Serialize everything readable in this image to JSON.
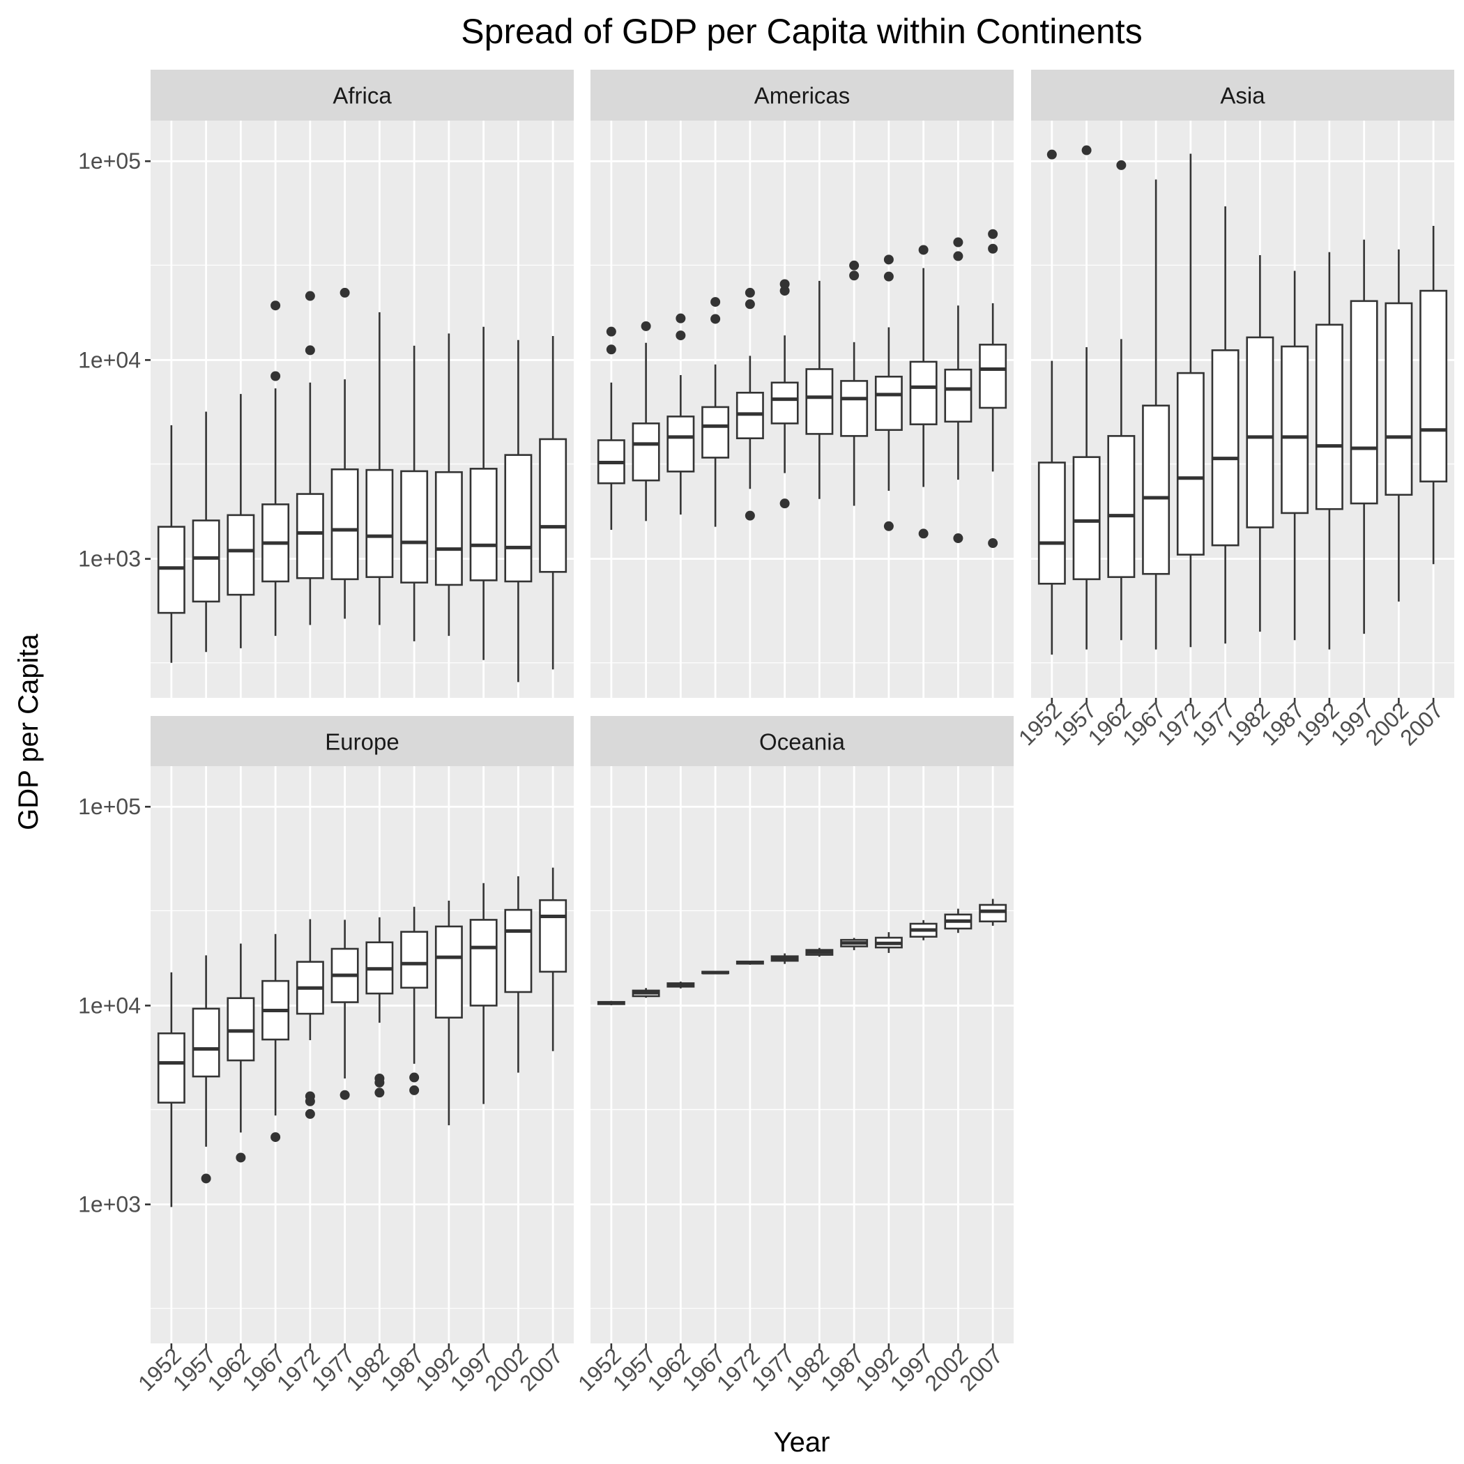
{
  "chart_data": {
    "type": "boxplot",
    "title": "Spread of GDP per Capita within Continents",
    "xlabel": "Year",
    "ylabel": "GDP per Capita",
    "y_scale": "log10",
    "ylim": [
      200,
      160000
    ],
    "y_ticks": [
      1000,
      10000,
      100000
    ],
    "y_tick_labels": [
      "1e+03",
      "1e+04",
      "1e+05"
    ],
    "categories": [
      "1952",
      "1957",
      "1962",
      "1967",
      "1972",
      "1977",
      "1982",
      "1987",
      "1992",
      "1997",
      "2002",
      "2007"
    ],
    "grid": true,
    "colors": {
      "panel_bg": "#ebebeb",
      "strip_bg": "#d9d9d9",
      "grid": "#ffffff",
      "box_line": "#333333",
      "box_fill": "#ffffff"
    },
    "panels": [
      {
        "name": "Africa",
        "boxes": [
          {
            "year": "1952",
            "min": 300,
            "q1": 535,
            "median": 900,
            "q3": 1450,
            "max": 4700,
            "outliers": []
          },
          {
            "year": "1957",
            "min": 340,
            "q1": 610,
            "median": 1010,
            "q3": 1560,
            "max": 5500,
            "outliers": []
          },
          {
            "year": "1962",
            "min": 355,
            "q1": 660,
            "median": 1100,
            "q3": 1660,
            "max": 6750,
            "outliers": []
          },
          {
            "year": "1967",
            "min": 410,
            "q1": 770,
            "median": 1200,
            "q3": 1880,
            "max": 7200,
            "outliers": [
              8300,
              18800
            ]
          },
          {
            "year": "1972",
            "min": 465,
            "q1": 800,
            "median": 1350,
            "q3": 2120,
            "max": 7700,
            "outliers": [
              11200,
              21000
            ]
          },
          {
            "year": "1977",
            "min": 500,
            "q1": 790,
            "median": 1400,
            "q3": 2820,
            "max": 8000,
            "outliers": [
              21800
            ]
          },
          {
            "year": "1982",
            "min": 465,
            "q1": 810,
            "median": 1300,
            "q3": 2800,
            "max": 17400,
            "outliers": []
          },
          {
            "year": "1987",
            "min": 385,
            "q1": 760,
            "median": 1210,
            "q3": 2760,
            "max": 11800,
            "outliers": []
          },
          {
            "year": "1992",
            "min": 410,
            "q1": 740,
            "median": 1120,
            "q3": 2730,
            "max": 13600,
            "outliers": []
          },
          {
            "year": "1997",
            "min": 310,
            "q1": 780,
            "median": 1170,
            "q3": 2840,
            "max": 14700,
            "outliers": []
          },
          {
            "year": "2002",
            "min": 240,
            "q1": 770,
            "median": 1140,
            "q3": 3330,
            "max": 12600,
            "outliers": []
          },
          {
            "year": "2007",
            "min": 278,
            "q1": 860,
            "median": 1450,
            "q3": 4000,
            "max": 13200,
            "outliers": []
          }
        ]
      },
      {
        "name": "Americas",
        "boxes": [
          {
            "year": "1952",
            "min": 1400,
            "q1": 2400,
            "median": 3050,
            "q3": 3950,
            "max": 7700,
            "outliers": [
              11300,
              13900
            ]
          },
          {
            "year": "1957",
            "min": 1550,
            "q1": 2480,
            "median": 3780,
            "q3": 4800,
            "max": 12200,
            "outliers": [
              14800
            ]
          },
          {
            "year": "1962",
            "min": 1670,
            "q1": 2750,
            "median": 4100,
            "q3": 5200,
            "max": 8400,
            "outliers": [
              13300,
              16200
            ]
          },
          {
            "year": "1967",
            "min": 1450,
            "q1": 3230,
            "median": 4650,
            "q3": 5800,
            "max": 9500,
            "outliers": [
              16100,
              19600
            ]
          },
          {
            "year": "1972",
            "min": 2250,
            "q1": 4040,
            "median": 5350,
            "q3": 6850,
            "max": 10500,
            "outliers": [
              1650,
              19100,
              21800
            ]
          },
          {
            "year": "1977",
            "min": 2700,
            "q1": 4800,
            "median": 6350,
            "q3": 7700,
            "max": 13300,
            "outliers": [
              1900,
              22300,
              24100
            ]
          },
          {
            "year": "1982",
            "min": 2000,
            "q1": 4250,
            "median": 6500,
            "q3": 9000,
            "max": 25000,
            "outliers": []
          },
          {
            "year": "1987",
            "min": 1850,
            "q1": 4150,
            "median": 6400,
            "q3": 7850,
            "max": 12300,
            "outliers": [
              26600,
              29900
            ]
          },
          {
            "year": "1992",
            "min": 2200,
            "q1": 4450,
            "median": 6700,
            "q3": 8250,
            "max": 14600,
            "outliers": [
              1460,
              26300,
              32000
            ]
          },
          {
            "year": "1997",
            "min": 2300,
            "q1": 4750,
            "median": 7300,
            "q3": 9800,
            "max": 29000,
            "outliers": [
              1340,
              35800
            ]
          },
          {
            "year": "2002",
            "min": 2500,
            "q1": 4900,
            "median": 7150,
            "q3": 8950,
            "max": 18800,
            "outliers": [
              1270,
              33300,
              39100
            ]
          },
          {
            "year": "2007",
            "min": 2750,
            "q1": 5750,
            "median": 9000,
            "q3": 11950,
            "max": 19300,
            "outliers": [
              1200,
              36300,
              43000
            ]
          }
        ]
      },
      {
        "name": "Asia",
        "boxes": [
          {
            "year": "1952",
            "min": 330,
            "q1": 750,
            "median": 1200,
            "q3": 3050,
            "max": 9900,
            "outliers": [
              108000
            ]
          },
          {
            "year": "1957",
            "min": 350,
            "q1": 790,
            "median": 1550,
            "q3": 3250,
            "max": 11600,
            "outliers": [
              113500
            ]
          },
          {
            "year": "1962",
            "min": 390,
            "q1": 810,
            "median": 1650,
            "q3": 4150,
            "max": 12750,
            "outliers": [
              95500
            ]
          },
          {
            "year": "1967",
            "min": 350,
            "q1": 840,
            "median": 2030,
            "q3": 5900,
            "max": 80900,
            "outliers": []
          },
          {
            "year": "1972",
            "min": 360,
            "q1": 1050,
            "median": 2550,
            "q3": 8600,
            "max": 109000,
            "outliers": []
          },
          {
            "year": "1977",
            "min": 375,
            "q1": 1170,
            "median": 3200,
            "q3": 11200,
            "max": 59300,
            "outliers": []
          },
          {
            "year": "1982",
            "min": 430,
            "q1": 1440,
            "median": 4100,
            "q3": 13000,
            "max": 33700,
            "outliers": []
          },
          {
            "year": "1987",
            "min": 390,
            "q1": 1700,
            "median": 4100,
            "q3": 11700,
            "max": 28100,
            "outliers": []
          },
          {
            "year": "1992",
            "min": 350,
            "q1": 1780,
            "median": 3700,
            "q3": 15050,
            "max": 34900,
            "outliers": []
          },
          {
            "year": "1997",
            "min": 420,
            "q1": 1900,
            "median": 3600,
            "q3": 19800,
            "max": 40300,
            "outliers": []
          },
          {
            "year": "2002",
            "min": 610,
            "q1": 2100,
            "median": 4100,
            "q3": 19300,
            "max": 36000,
            "outliers": []
          },
          {
            "year": "2007",
            "min": 940,
            "q1": 2450,
            "median": 4450,
            "q3": 22300,
            "max": 47300,
            "outliers": []
          }
        ]
      },
      {
        "name": "Europe",
        "boxes": [
          {
            "year": "1952",
            "min": 970,
            "q1": 3250,
            "median": 5150,
            "q3": 7250,
            "max": 14700,
            "outliers": []
          },
          {
            "year": "1957",
            "min": 1950,
            "q1": 4400,
            "median": 6050,
            "q3": 9650,
            "max": 17900,
            "outliers": [
              1350
            ]
          },
          {
            "year": "1962",
            "min": 2300,
            "q1": 5300,
            "median": 7450,
            "q3": 10900,
            "max": 20500,
            "outliers": [
              1720
            ]
          },
          {
            "year": "1967",
            "min": 2800,
            "q1": 6750,
            "median": 9450,
            "q3": 13300,
            "max": 22900,
            "outliers": [
              2180
            ]
          },
          {
            "year": "1972",
            "min": 6700,
            "q1": 9100,
            "median": 12250,
            "q3": 16600,
            "max": 27200,
            "outliers": [
              2850,
              3300,
              3500
            ]
          },
          {
            "year": "1977",
            "min": 4300,
            "q1": 10400,
            "median": 14200,
            "q3": 19300,
            "max": 27000,
            "outliers": [
              3550
            ]
          },
          {
            "year": "1982",
            "min": 8200,
            "q1": 11500,
            "median": 15300,
            "q3": 20800,
            "max": 27800,
            "outliers": [
              3650,
              4100,
              4300
            ]
          },
          {
            "year": "1987",
            "min": 5100,
            "q1": 12300,
            "median": 16250,
            "q3": 23500,
            "max": 31400,
            "outliers": [
              3750,
              4350
            ]
          },
          {
            "year": "1992",
            "min": 2500,
            "q1": 8700,
            "median": 17500,
            "q3": 25000,
            "max": 33700,
            "outliers": []
          },
          {
            "year": "1997",
            "min": 3200,
            "q1": 10000,
            "median": 19600,
            "q3": 27000,
            "max": 41300,
            "outliers": []
          },
          {
            "year": "2002",
            "min": 4600,
            "q1": 11700,
            "median": 23700,
            "q3": 30300,
            "max": 44700,
            "outliers": []
          },
          {
            "year": "2007",
            "min": 5900,
            "q1": 14800,
            "median": 28100,
            "q3": 33900,
            "max": 49400,
            "outliers": []
          }
        ]
      },
      {
        "name": "Oceania",
        "boxes": [
          {
            "year": "1952",
            "min": 10040,
            "q1": 10170,
            "median": 10300,
            "q3": 10430,
            "max": 10560,
            "outliers": []
          },
          {
            "year": "1957",
            "min": 10950,
            "q1": 11150,
            "median": 11600,
            "q3": 11900,
            "max": 12250,
            "outliers": []
          },
          {
            "year": "1962",
            "min": 12200,
            "q1": 12450,
            "median": 12700,
            "q3": 12950,
            "max": 13200,
            "outliers": []
          },
          {
            "year": "1967",
            "min": 14450,
            "q1": 14550,
            "median": 14650,
            "q3": 14800,
            "max": 14900,
            "outliers": []
          },
          {
            "year": "1972",
            "min": 16050,
            "q1": 16250,
            "median": 16450,
            "q3": 16650,
            "max": 16800,
            "outliers": []
          },
          {
            "year": "1977",
            "min": 16200,
            "q1": 16800,
            "median": 17300,
            "q3": 17700,
            "max": 18300,
            "outliers": []
          },
          {
            "year": "1982",
            "min": 17600,
            "q1": 18000,
            "median": 18550,
            "q3": 19050,
            "max": 19500,
            "outliers": []
          },
          {
            "year": "1987",
            "min": 19000,
            "q1": 19850,
            "median": 20650,
            "q3": 21400,
            "max": 21900,
            "outliers": []
          },
          {
            "year": "1992",
            "min": 18400,
            "q1": 19600,
            "median": 20550,
            "q3": 21950,
            "max": 23400,
            "outliers": []
          },
          {
            "year": "1997",
            "min": 21300,
            "q1": 22200,
            "median": 24000,
            "q3": 25800,
            "max": 26900,
            "outliers": []
          },
          {
            "year": "2002",
            "min": 23200,
            "q1": 24400,
            "median": 26600,
            "q3": 28700,
            "max": 30700,
            "outliers": []
          },
          {
            "year": "2007",
            "min": 25200,
            "q1": 26500,
            "median": 29800,
            "q3": 32100,
            "max": 34400,
            "outliers": []
          }
        ]
      }
    ]
  }
}
